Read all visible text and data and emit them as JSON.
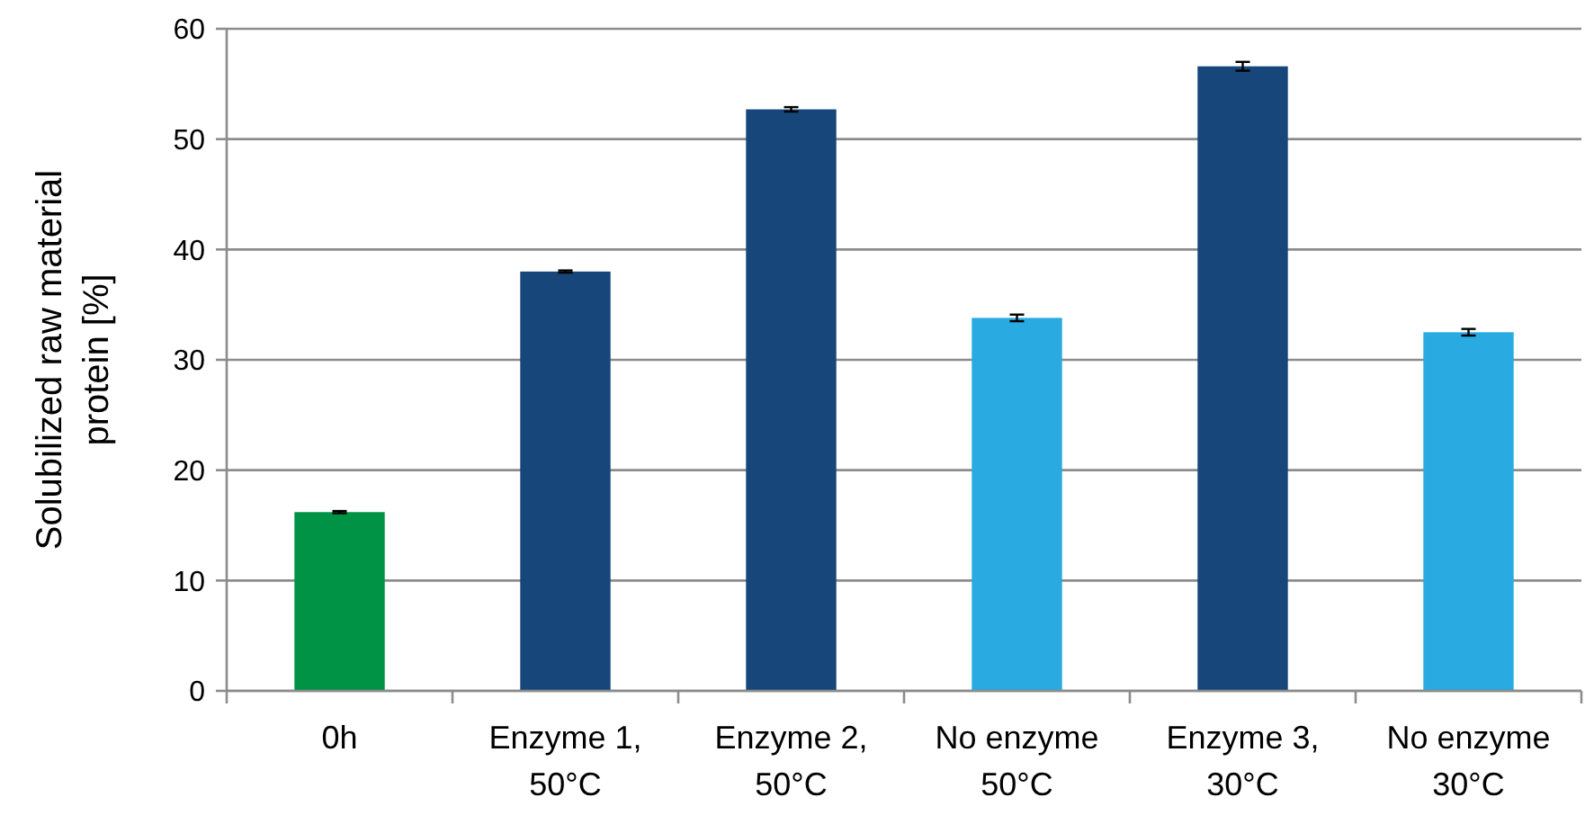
{
  "chart_data": {
    "type": "bar",
    "ylabel": "Solubilized raw material\nprotein [%]",
    "categories": [
      "0h",
      "Enzyme 1,\n50°C",
      "Enzyme 2,\n50°C",
      "No enzyme\n50°C",
      "Enzyme 3,\n30°C",
      "No enzyme\n30°C"
    ],
    "values": [
      16.2,
      38.0,
      52.7,
      33.8,
      56.6,
      32.5
    ],
    "errors": [
      0.1,
      0.1,
      0.2,
      0.3,
      0.4,
      0.3
    ],
    "colors": [
      "#009245",
      "#17477a",
      "#17477a",
      "#29abe2",
      "#17477a",
      "#29abe2"
    ],
    "ylim": [
      0,
      60
    ],
    "yticks": [
      0,
      10,
      20,
      30,
      40,
      50,
      60
    ],
    "grid": "y"
  }
}
